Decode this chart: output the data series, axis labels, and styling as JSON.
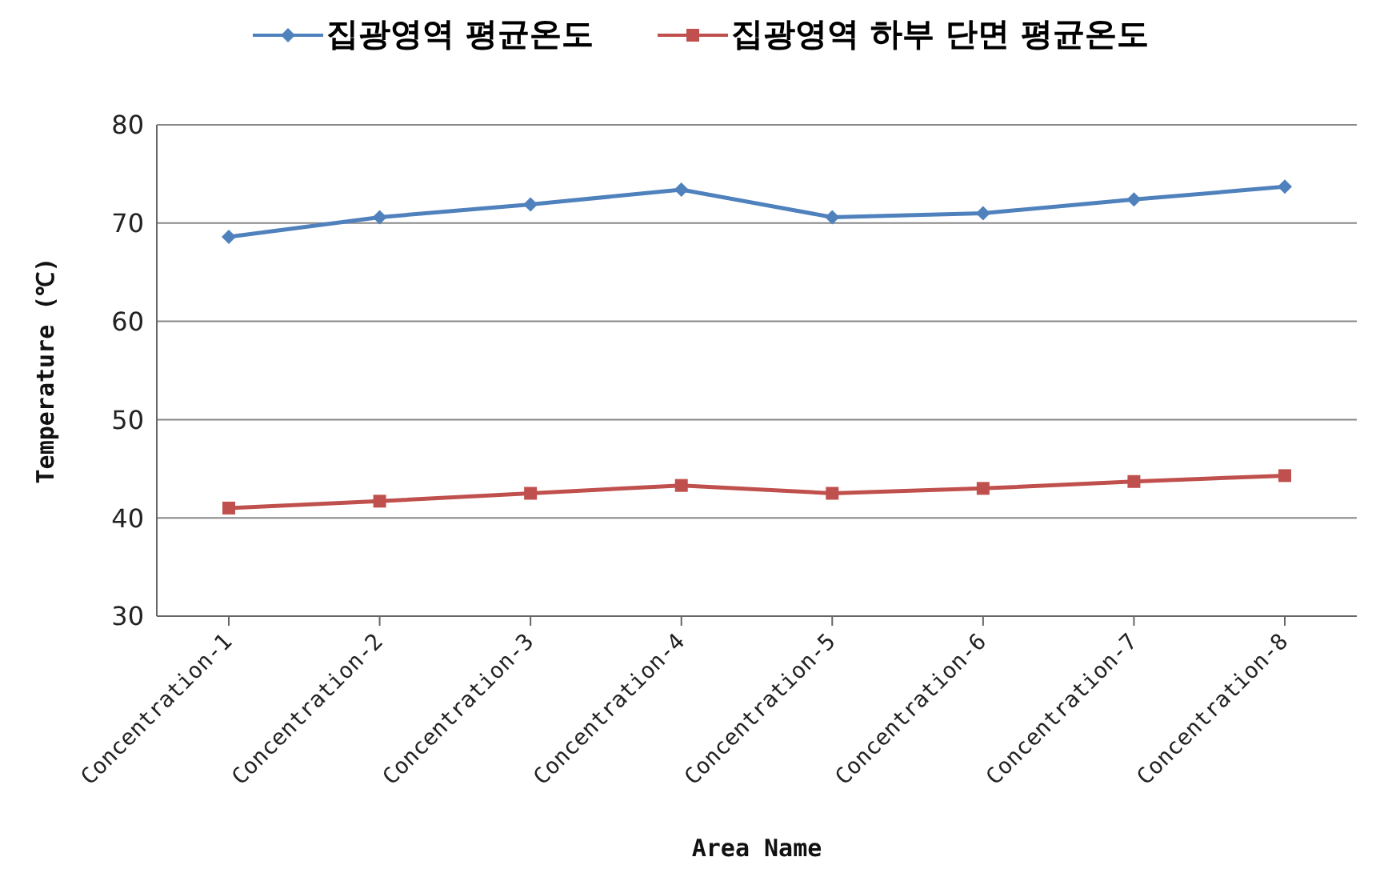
{
  "chart_data": {
    "type": "line",
    "xlabel": "Area Name",
    "ylabel": "Temperature (℃)",
    "categories": [
      "Concentration-1",
      "Concentration-2",
      "Concentration-3",
      "Concentration-4",
      "Concentration-5",
      "Concentration-6",
      "Concentration-7",
      "Concentration-8"
    ],
    "series": [
      {
        "name": "집광영역 평균온도",
        "color": "#4f81bd",
        "marker": "diamond",
        "values": [
          68.6,
          70.6,
          71.9,
          73.4,
          70.6,
          71.0,
          72.4,
          73.7
        ]
      },
      {
        "name": "집광영역 하부 단면 평균온도",
        "color": "#c0504d",
        "marker": "square",
        "values": [
          41.0,
          41.7,
          42.5,
          43.3,
          42.5,
          43.0,
          43.7,
          44.3
        ]
      }
    ],
    "ylim": [
      30,
      80
    ],
    "yticks": [
      30,
      40,
      50,
      60,
      70,
      80
    ],
    "grid": "y",
    "legend": "top"
  }
}
